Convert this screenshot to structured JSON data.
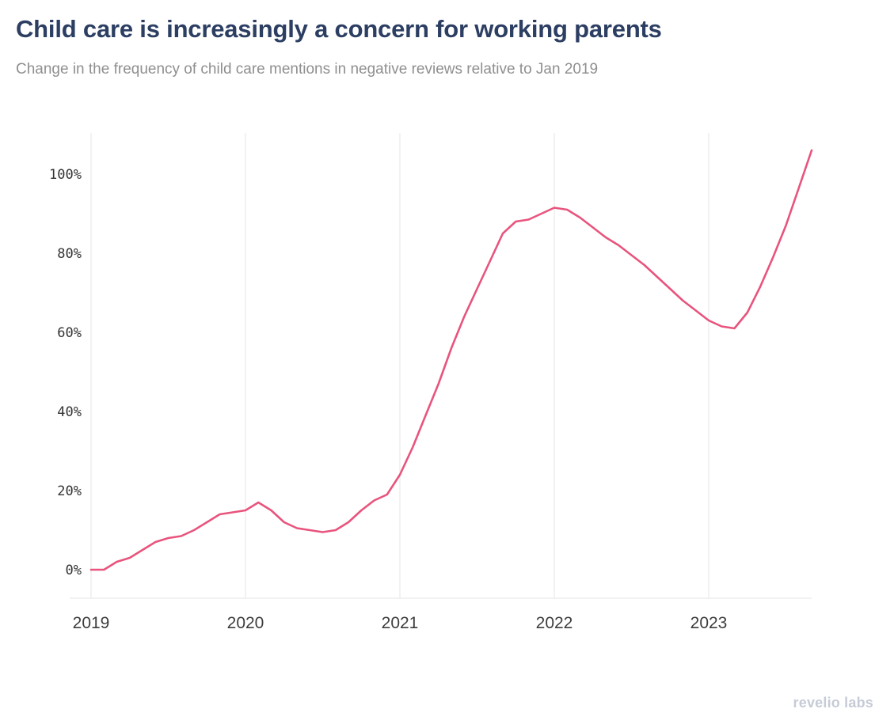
{
  "header": {
    "title": "Child care is increasingly a concern for working parents",
    "subtitle": "Change in the frequency of child care mentions in negative reviews relative to Jan 2019"
  },
  "footer": {
    "brand": "revelio labs"
  },
  "chart_data": {
    "type": "line",
    "title": "Child care is increasingly a concern for working parents",
    "subtitle": "Change in the frequency of child care mentions in negative reviews relative to Jan 2019",
    "x_unit": "month",
    "x": [
      "2019-01",
      "2019-02",
      "2019-03",
      "2019-04",
      "2019-05",
      "2019-06",
      "2019-07",
      "2019-08",
      "2019-09",
      "2019-10",
      "2019-11",
      "2019-12",
      "2020-01",
      "2020-02",
      "2020-03",
      "2020-04",
      "2020-05",
      "2020-06",
      "2020-07",
      "2020-08",
      "2020-09",
      "2020-10",
      "2020-11",
      "2020-12",
      "2021-01",
      "2021-02",
      "2021-03",
      "2021-04",
      "2021-05",
      "2021-06",
      "2021-07",
      "2021-08",
      "2021-09",
      "2021-10",
      "2021-11",
      "2021-12",
      "2022-01",
      "2022-02",
      "2022-03",
      "2022-04",
      "2022-05",
      "2022-06",
      "2022-07",
      "2022-08",
      "2022-09",
      "2022-10",
      "2022-11",
      "2022-12",
      "2023-01",
      "2023-02",
      "2023-03",
      "2023-04",
      "2023-05",
      "2023-06",
      "2023-07",
      "2023-08",
      "2023-09"
    ],
    "values": [
      0,
      0,
      2,
      3,
      5,
      7,
      8,
      8.5,
      10,
      12,
      14,
      14.5,
      15,
      17,
      15,
      12,
      10.5,
      10,
      9.5,
      10,
      12,
      15,
      17.5,
      19,
      24,
      31,
      39,
      47,
      56,
      64,
      71,
      78,
      85,
      88,
      88.5,
      90,
      91.5,
      91,
      89,
      86.5,
      84,
      82,
      79.5,
      77,
      74,
      71,
      68,
      65.5,
      63,
      61.5,
      61,
      65,
      71.5,
      79,
      87,
      96.5,
      106
    ],
    "ylabel": "",
    "xlabel": "",
    "ytick_values": [
      0,
      20,
      40,
      60,
      80,
      100
    ],
    "ytick_labels": [
      "0%",
      "20%",
      "40%",
      "60%",
      "80%",
      "100%"
    ],
    "xtick_indices": [
      0,
      12,
      24,
      36,
      48
    ],
    "xtick_labels": [
      "2019",
      "2020",
      "2021",
      "2022",
      "2023"
    ],
    "ylim": [
      -6,
      108
    ],
    "grid": "vertical-year-lines",
    "legend": "none",
    "line_color": "#e8547d",
    "grid_color": "#e6e6e6",
    "axis_color": "#e6e6e6",
    "title_color": "#2c3e62",
    "subtitle_color": "#8f8f8f"
  }
}
